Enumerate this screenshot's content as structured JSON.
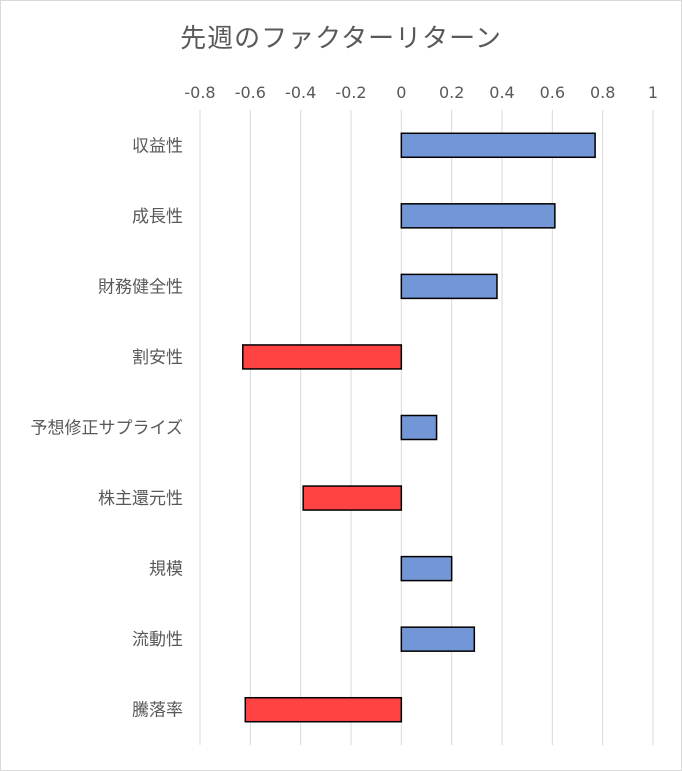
{
  "chart_data": {
    "type": "bar",
    "orientation": "horizontal",
    "title": "先週のファクターリターン",
    "categories": [
      "収益性",
      "成長性",
      "財務健全性",
      "割安性",
      "予想修正サプライズ",
      "株主還元性",
      "規模",
      "流動性",
      "騰落率"
    ],
    "values": [
      0.77,
      0.61,
      0.38,
      -0.63,
      0.14,
      -0.39,
      0.2,
      0.29,
      -0.62
    ],
    "xlim": [
      -0.8,
      1
    ],
    "x_ticks": [
      "-0.8",
      "-0.6",
      "-0.4",
      "-0.2",
      "0",
      "0.2",
      "0.4",
      "0.6",
      "0.8",
      "1"
    ],
    "x_tick_values": [
      -0.8,
      -0.6,
      -0.4,
      -0.2,
      0,
      0.2,
      0.4,
      0.6,
      0.8,
      1
    ],
    "grid": true,
    "axis_position": "top",
    "colors": {
      "positive": "#7396d6",
      "negative": "#ff4343",
      "edge": "#000000",
      "grid": "#d9d9d9",
      "text": "#595959"
    }
  }
}
